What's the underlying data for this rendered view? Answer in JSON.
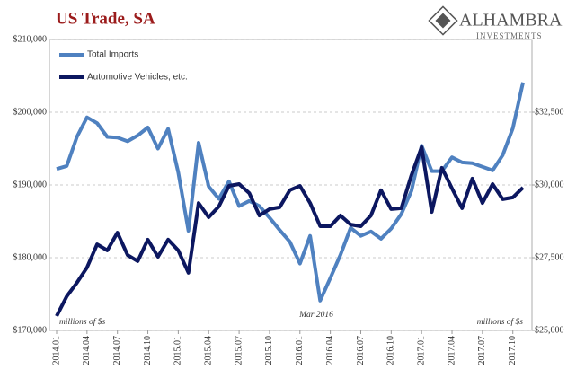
{
  "chart_data": {
    "type": "line",
    "title": "US Trade, SA",
    "logo": {
      "name": "ALHAMBRA",
      "sub": "INVESTMENTS"
    },
    "categories": [
      "2014.01",
      null,
      null,
      "2014.04",
      null,
      null,
      "2014.07",
      null,
      null,
      "2014.10",
      null,
      null,
      "2015.01",
      null,
      null,
      "2015.04",
      null,
      null,
      "2015.07",
      null,
      null,
      "2015.10",
      null,
      null,
      "2016.01",
      null,
      null,
      "2016.04",
      null,
      null,
      "2016.07",
      null,
      null,
      "2016.10",
      null,
      null,
      "2017.01",
      null,
      null,
      "2017.04",
      null,
      null,
      "2017.07",
      null,
      null,
      "2017.10",
      null
    ],
    "series": [
      {
        "name": "Total Imports",
        "color": "#4f81c0",
        "values": [
          192200,
          192600,
          196600,
          199300,
          198500,
          196600,
          196500,
          196000,
          196800,
          197900,
          195000,
          197700,
          191700,
          183700,
          195800,
          189800,
          188100,
          190500,
          187100,
          187800,
          187100,
          185500,
          183800,
          182200,
          179200,
          183000,
          174100,
          177200,
          180400,
          184100,
          183000,
          183600,
          182600,
          184000,
          186000,
          189200,
          195400,
          191900,
          191900,
          193800,
          193100,
          193000,
          192500,
          192000,
          194100,
          197800,
          204100
        ]
      },
      {
        "name": "Automotive Vehicles, etc.",
        "color": "#0c1760",
        "axis": "y2",
        "values": [
          25490,
          26170,
          26640,
          27160,
          27960,
          27750,
          28360,
          27590,
          27380,
          28120,
          27530,
          28120,
          27750,
          26980,
          29380,
          28890,
          29260,
          29970,
          30030,
          29720,
          28950,
          29170,
          29230,
          29820,
          29970,
          29380,
          28580,
          28580,
          28950,
          28640,
          28580,
          28950,
          29820,
          29170,
          29200,
          30340,
          31300,
          29070,
          30590,
          29880,
          29200,
          30220,
          29380,
          30030,
          29510,
          29570,
          29910
        ]
      }
    ],
    "ylim": [
      170000,
      210000
    ],
    "yticks": [
      {
        "value": 170000,
        "label": "$170,000"
      },
      {
        "value": 180000,
        "label": "$180,000"
      },
      {
        "value": 190000,
        "label": "$190,000"
      },
      {
        "value": 200000,
        "label": "$200,000"
      },
      {
        "value": 210000,
        "label": "$210,000"
      }
    ],
    "y2lim": [
      25000,
      35000
    ],
    "y2ticks": [
      {
        "value": 25000,
        "label": "$25,000"
      },
      {
        "value": 27500,
        "label": "$27,500"
      },
      {
        "value": 30000,
        "label": "$30,000"
      },
      {
        "value": 32500,
        "label": "$32,500"
      }
    ],
    "grid": true,
    "annotations": {
      "left_unit": "millions of $s",
      "right_unit": "millions of $s",
      "trough": "Mar 2016"
    }
  }
}
